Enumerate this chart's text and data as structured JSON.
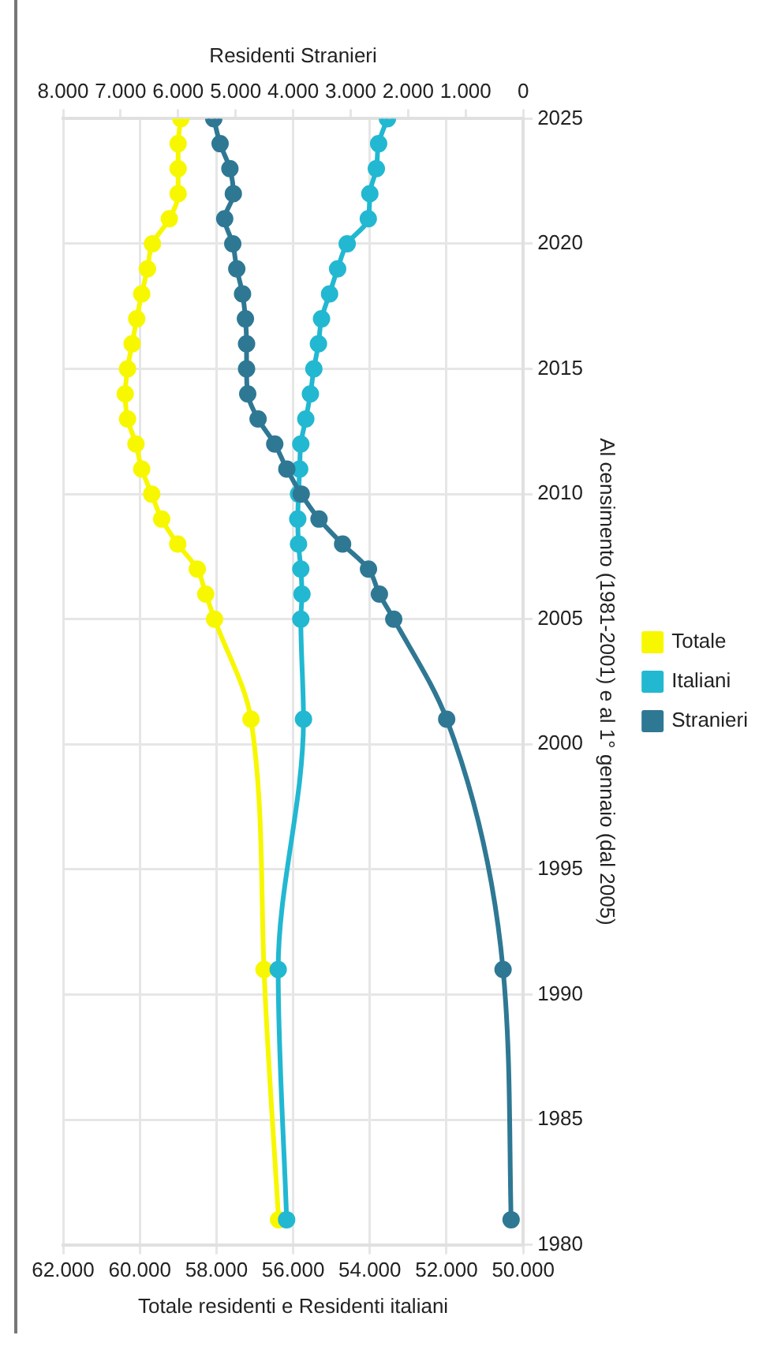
{
  "chart_data": {
    "type": "line",
    "orientation": "horizontal",
    "ylabel": "Al censimento (1981-2001) e al 1° gennaio (dal 2005)",
    "xlabel": "Totale residenti e Residenti italiani",
    "x2label": "Residenti Stranieri",
    "x": [
      1981,
      1991,
      2001,
      2005,
      2006,
      2007,
      2008,
      2009,
      2010,
      2011,
      2012,
      2013,
      2014,
      2015,
      2016,
      2017,
      2018,
      2019,
      2020,
      2021,
      2022,
      2023,
      2024,
      2025
    ],
    "series": [
      {
        "name": "Totale",
        "color": "#f7f700",
        "values": [
          56380,
          56760,
          57100,
          58050,
          58280,
          58500,
          59010,
          59430,
          59690,
          59950,
          60100,
          60320,
          60380,
          60320,
          60200,
          60080,
          59950,
          59800,
          59670,
          59230,
          59000,
          59000,
          59000,
          58930
        ]
      },
      {
        "name": "Italiani",
        "color": "#22b8d1",
        "values": [
          56170,
          56390,
          55730,
          55800,
          55770,
          55800,
          55860,
          55880,
          55860,
          55830,
          55800,
          55670,
          55550,
          55460,
          55340,
          55260,
          55050,
          54840,
          54590,
          54040,
          54000,
          53830,
          53770,
          53540
        ]
      },
      {
        "name": "Stranieri",
        "color": "#2e7894",
        "axis": "x2",
        "values": [
          210,
          350,
          1330,
          2250,
          2500,
          2690,
          3140,
          3550,
          3860,
          4110,
          4320,
          4610,
          4790,
          4810,
          4810,
          4830,
          4880,
          4980,
          5050,
          5190,
          5040,
          5100,
          5270,
          5380
        ]
      }
    ],
    "ylim": [
      1980,
      2025
    ],
    "yticks": [
      1980,
      1985,
      1990,
      1995,
      2000,
      2005,
      2010,
      2015,
      2020,
      2025
    ],
    "xlim": [
      62000,
      50000
    ],
    "xticks": [
      {
        "value": 62000,
        "label": "62.000"
      },
      {
        "value": 60000,
        "label": "60.000"
      },
      {
        "value": 58000,
        "label": "58.000"
      },
      {
        "value": 56000,
        "label": "56.000"
      },
      {
        "value": 54000,
        "label": "54.000"
      },
      {
        "value": 52000,
        "label": "52.000"
      },
      {
        "value": 50000,
        "label": "50.000"
      }
    ],
    "x2lim": [
      8000,
      0
    ],
    "x2ticks": [
      {
        "value": 8000,
        "label": "8.000"
      },
      {
        "value": 7000,
        "label": "7.000"
      },
      {
        "value": 6000,
        "label": "6.000"
      },
      {
        "value": 5000,
        "label": "5.000"
      },
      {
        "value": 4000,
        "label": "4.000"
      },
      {
        "value": 3000,
        "label": "3.000"
      },
      {
        "value": 2000,
        "label": "2.000"
      },
      {
        "value": 1000,
        "label": "1.000"
      },
      0
    ],
    "grid": true,
    "legend": "right",
    "marker": "circle",
    "line_style": "solid"
  }
}
